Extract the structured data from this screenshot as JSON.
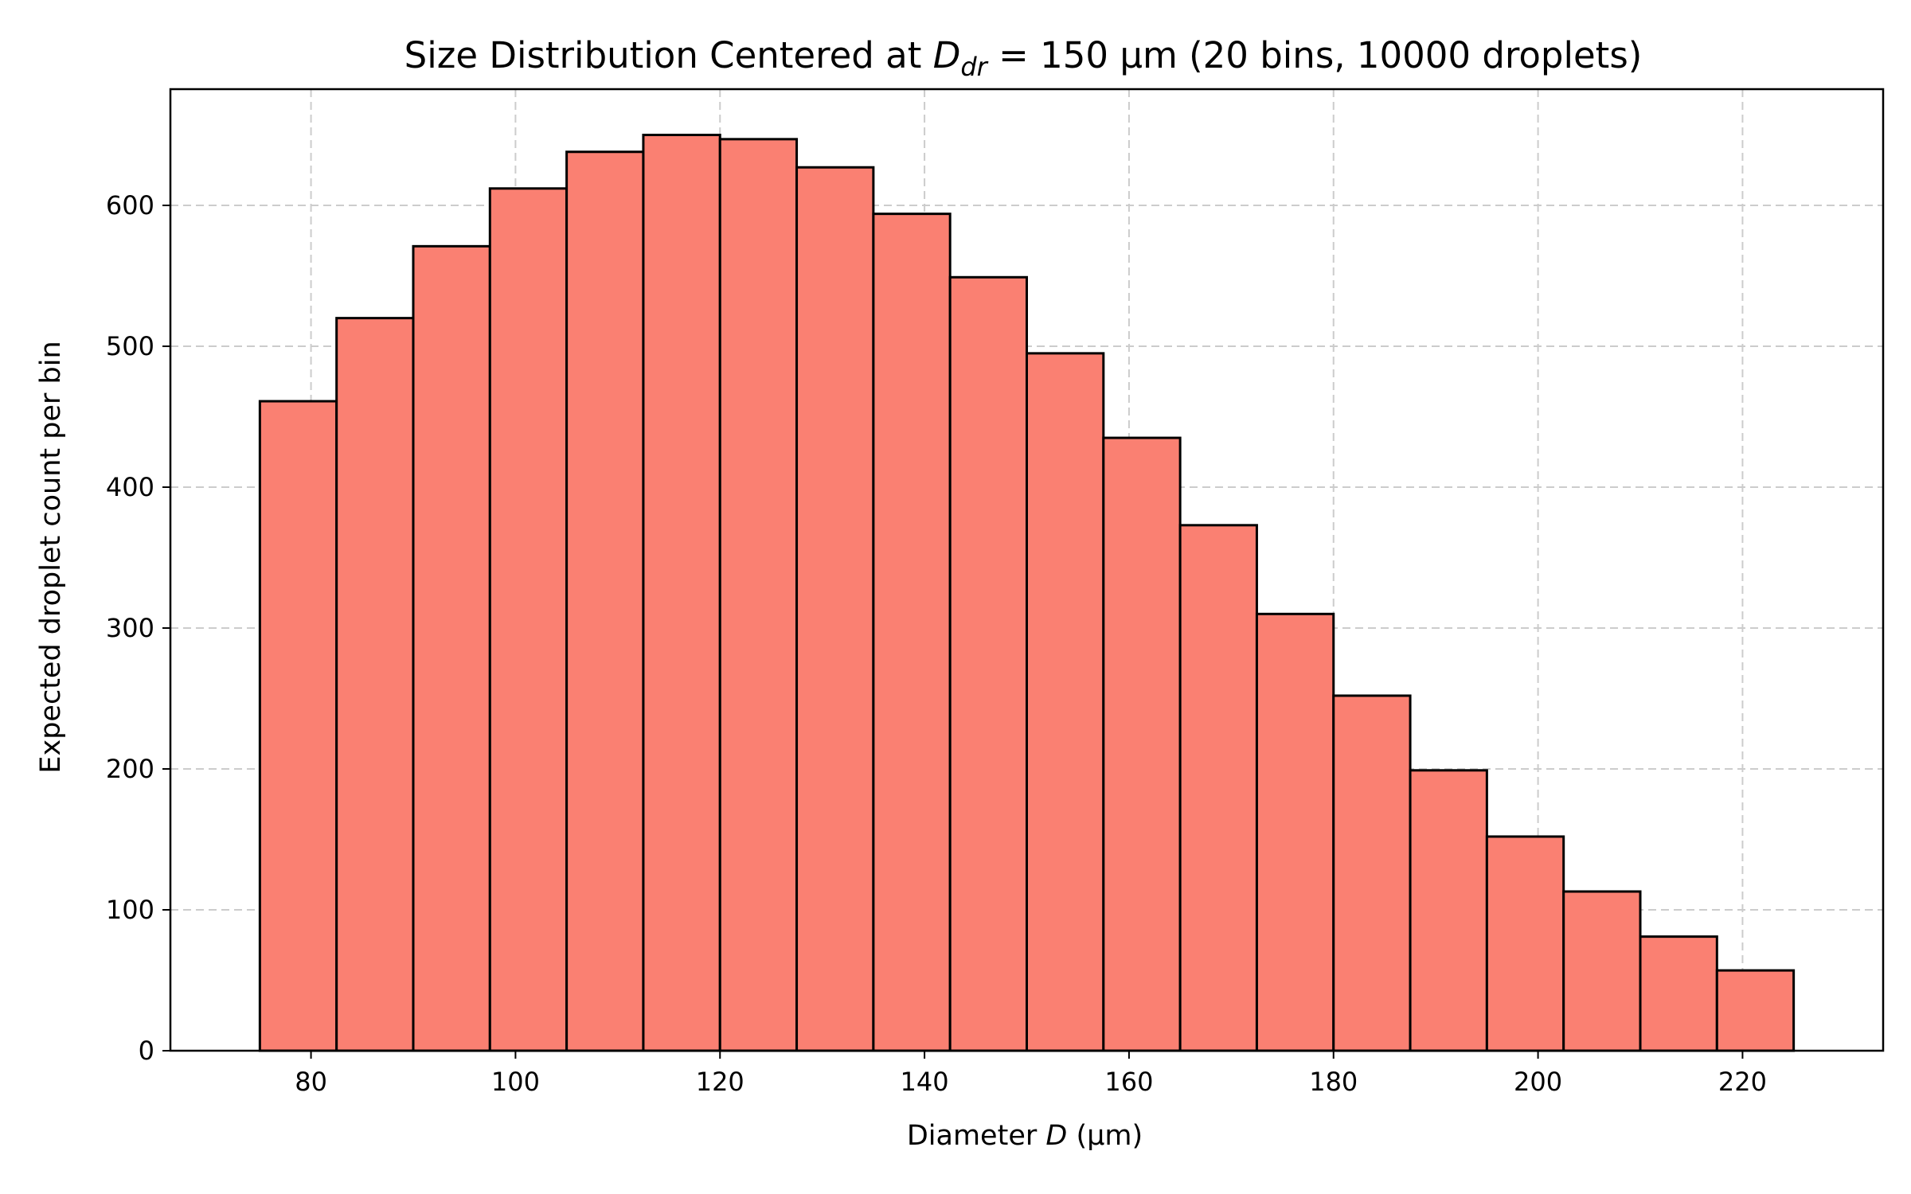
{
  "chart_data": {
    "type": "bar",
    "title": "Size Distribution Centered at D_dr = 150 μm (20 bins, 10000 droplets)",
    "title_parts": {
      "prefix": "Size Distribution Centered at ",
      "symbol": "D",
      "subscript": "dr",
      "suffix": " = 150 μm (20 bins, 10000 droplets)"
    },
    "xlabel": "Diameter D (μm)",
    "xlabel_parts": {
      "prefix": "Diameter ",
      "symbol": "D",
      "suffix": " (μm)"
    },
    "ylabel": "Expected droplet count per bin",
    "bin_edges": [
      75,
      82.5,
      90,
      97.5,
      105,
      112.5,
      120,
      127.5,
      135,
      142.5,
      150,
      157.5,
      165,
      172.5,
      180,
      187.5,
      195,
      202.5,
      210,
      217.5,
      225
    ],
    "values": [
      461,
      520,
      571,
      612,
      638,
      650,
      647,
      627,
      594,
      549,
      495,
      435,
      373,
      310,
      252,
      199,
      152,
      113,
      81,
      57
    ],
    "xlim": [
      66.25,
      233.75
    ],
    "ylim": [
      0,
      682.5
    ],
    "xticks": [
      80,
      100,
      120,
      140,
      160,
      180,
      200,
      220
    ],
    "yticks": [
      0,
      100,
      200,
      300,
      400,
      500,
      600
    ],
    "grid": true,
    "bar_color": "#fa8072",
    "edge_color": "#000000"
  }
}
